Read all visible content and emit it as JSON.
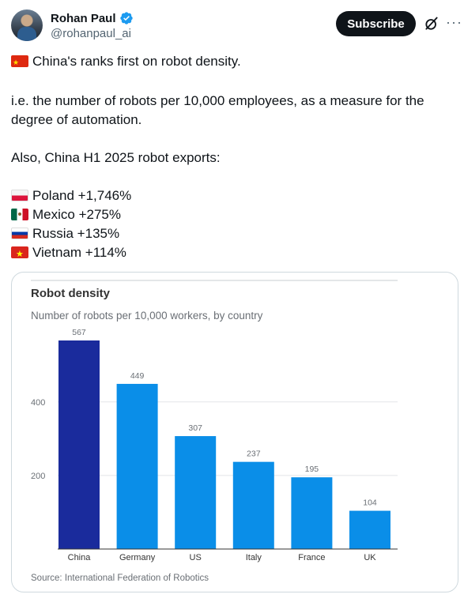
{
  "author": {
    "name": "Rohan Paul",
    "handle": "@rohanpaul_ai"
  },
  "actions": {
    "subscribe_label": "Subscribe"
  },
  "post": {
    "line1": "China's ranks first on robot density.",
    "line2": "i.e. the number of robots per 10,000 employees, as a measure for the",
    "line3": "degree of automation.",
    "line4": "Also, China H1 2025 robot exports:",
    "exports": [
      {
        "country": "Poland",
        "flag": "poland-flag",
        "text": "Poland +1,746%"
      },
      {
        "country": "Mexico",
        "flag": "mexico-flag",
        "text": "Mexico +275%"
      },
      {
        "country": "Russia",
        "flag": "russia-flag",
        "text": "Russia +135%"
      },
      {
        "country": "Vietnam",
        "flag": "vietnam-flag",
        "text": "Vietnam +114%"
      }
    ]
  },
  "chart_data": {
    "type": "bar",
    "title": "Robot density",
    "subtitle": "Number of robots per 10,000 workers, by country",
    "categories": [
      "China",
      "Germany",
      "US",
      "Italy",
      "France",
      "UK"
    ],
    "values": [
      567,
      449,
      307,
      237,
      195,
      104
    ],
    "data_labels": [
      "567",
      "449",
      "307",
      "237",
      "195",
      "104"
    ],
    "yticks": [
      200,
      400
    ],
    "ytick_labels": [
      "200",
      "400"
    ],
    "ylim": [
      0,
      567
    ],
    "grid": true,
    "colors": {
      "highlight": "#1a2b9c",
      "default": "#0a8ee8"
    },
    "source": "Source: International Federation of Robotics"
  }
}
